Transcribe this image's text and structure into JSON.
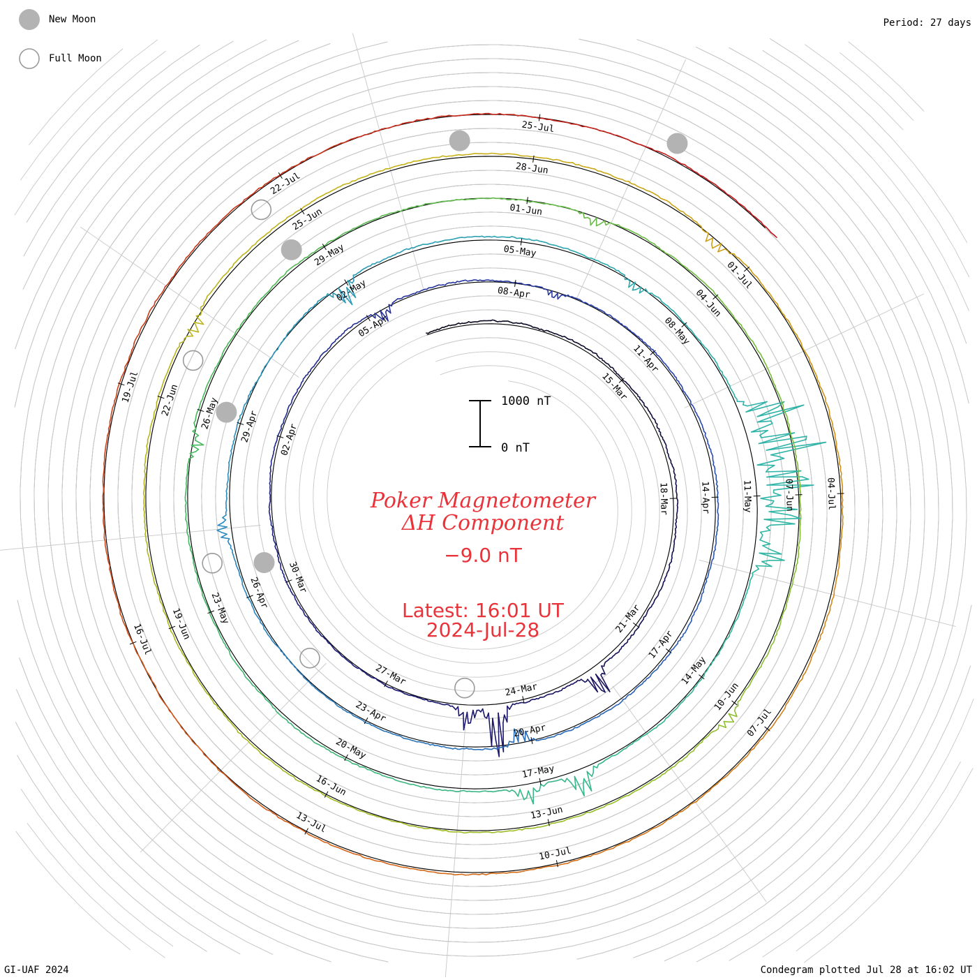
{
  "legend": {
    "new_moon": {
      "label": "New Moon",
      "color": "#b3b3b3"
    },
    "full_moon": {
      "label": "Full Moon",
      "color": "#9a9a9a"
    }
  },
  "header": {
    "period": "Period: 27 days"
  },
  "footer": {
    "left": "GI-UAF 2024",
    "right": "Condegram plotted Jul 28 at 16:02 UT"
  },
  "title": {
    "line1": "Poker Magnetometer",
    "line2": "ΔH Component",
    "value": "−9.0 nT",
    "latest_line1": "Latest: 16:01 UT",
    "latest_line2": "2024-Jul-28",
    "color": "#e8333a"
  },
  "scale_bar": {
    "top_label": "1000 nT",
    "bottom_label": "0 nT"
  },
  "chart_data": {
    "type": "line",
    "subtype": "condegram-spiral",
    "period_days": 27,
    "start_date": "2024-Mar-10",
    "end_date": "2024-Jul-28",
    "scale_nT": [
      0,
      1000
    ],
    "grid": true,
    "date_labels": [
      {
        "text": "15-Mar",
        "day": 5
      },
      {
        "text": "18-Mar",
        "day": 8
      },
      {
        "text": "21-Mar",
        "day": 11
      },
      {
        "text": "24-Mar",
        "day": 14
      },
      {
        "text": "27-Mar",
        "day": 17
      },
      {
        "text": "30-Mar",
        "day": 20
      },
      {
        "text": "02-Apr",
        "day": 23
      },
      {
        "text": "05-Apr",
        "day": 26
      },
      {
        "text": "08-Apr",
        "day": 29
      },
      {
        "text": "11-Apr",
        "day": 32
      },
      {
        "text": "14-Apr",
        "day": 35
      },
      {
        "text": "17-Apr",
        "day": 38
      },
      {
        "text": "20-Apr",
        "day": 41
      },
      {
        "text": "23-Apr",
        "day": 44
      },
      {
        "text": "26-Apr",
        "day": 47
      },
      {
        "text": "29-Apr",
        "day": 50
      },
      {
        "text": "02-May",
        "day": 53
      },
      {
        "text": "05-May",
        "day": 56
      },
      {
        "text": "08-May",
        "day": 59
      },
      {
        "text": "11-May",
        "day": 62
      },
      {
        "text": "14-May",
        "day": 65
      },
      {
        "text": "17-May",
        "day": 68
      },
      {
        "text": "20-May",
        "day": 71
      },
      {
        "text": "23-May",
        "day": 74
      },
      {
        "text": "26-May",
        "day": 77
      },
      {
        "text": "29-May",
        "day": 80
      },
      {
        "text": "01-Jun",
        "day": 83
      },
      {
        "text": "04-Jun",
        "day": 86
      },
      {
        "text": "07-Jun",
        "day": 89
      },
      {
        "text": "10-Jun",
        "day": 92
      },
      {
        "text": "13-Jun",
        "day": 95
      },
      {
        "text": "16-Jun",
        "day": 98
      },
      {
        "text": "19-Jun",
        "day": 101
      },
      {
        "text": "22-Jun",
        "day": 104
      },
      {
        "text": "25-Jun",
        "day": 107
      },
      {
        "text": "28-Jun",
        "day": 110
      },
      {
        "text": "01-Jul",
        "day": 113
      },
      {
        "text": "04-Jul",
        "day": 116
      },
      {
        "text": "07-Jul",
        "day": 119
      },
      {
        "text": "10-Jul",
        "day": 122
      },
      {
        "text": "13-Jul",
        "day": 125
      },
      {
        "text": "16-Jul",
        "day": 128
      },
      {
        "text": "19-Jul",
        "day": 131
      },
      {
        "text": "22-Jul",
        "day": 134
      },
      {
        "text": "25-Jul",
        "day": 137
      }
    ],
    "new_moons": [
      20.5,
      50.1,
      79.6,
      109.1,
      138.5
    ],
    "full_moons": [
      15.3,
      45.5,
      74.7,
      104.6,
      133.6
    ],
    "disturbances": [
      {
        "day": 12.4,
        "amplitude_nT": 700,
        "dir": 1
      },
      {
        "day": 14.6,
        "amplitude_nT": 1300,
        "dir": 1
      },
      {
        "day": 15.2,
        "amplitude_nT": 500,
        "dir": 1
      },
      {
        "day": 26.3,
        "amplitude_nT": 350,
        "dir": -1
      },
      {
        "day": 29.8,
        "amplitude_nT": 200,
        "dir": -1
      },
      {
        "day": 41.2,
        "amplitude_nT": 450,
        "dir": -1
      },
      {
        "day": 48.2,
        "amplitude_nT": 300,
        "dir": 1
      },
      {
        "day": 52.9,
        "amplitude_nT": 600,
        "dir": -1
      },
      {
        "day": 58.0,
        "amplitude_nT": 250,
        "dir": -1
      },
      {
        "day": 60.8,
        "amplitude_nT": 1400,
        "dir": 1
      },
      {
        "day": 61.3,
        "amplitude_nT": 1800,
        "dir": 1
      },
      {
        "day": 61.8,
        "amplitude_nT": 1500,
        "dir": 1
      },
      {
        "day": 62.3,
        "amplitude_nT": 1100,
        "dir": 1
      },
      {
        "day": 62.9,
        "amplitude_nT": 700,
        "dir": 1
      },
      {
        "day": 67.4,
        "amplitude_nT": 600,
        "dir": 1
      },
      {
        "day": 68.2,
        "amplitude_nT": 400,
        "dir": 1
      },
      {
        "day": 76.5,
        "amplitude_nT": 300,
        "dir": -1
      },
      {
        "day": 84.0,
        "amplitude_nT": 250,
        "dir": -1
      },
      {
        "day": 92.2,
        "amplitude_nT": 250,
        "dir": 1
      },
      {
        "day": 105.0,
        "amplitude_nT": 300,
        "dir": -1
      },
      {
        "day": 112.5,
        "amplitude_nT": 300,
        "dir": -1
      }
    ],
    "axis_line_colors": [
      "#000000",
      "#000000",
      "#000000",
      "#000000",
      "#000000"
    ],
    "color_ramp": [
      "#0b0b1a",
      "#1c1870",
      "#2b3fa8",
      "#2b86c0",
      "#2fb6a6",
      "#4ab85a",
      "#96bf2a",
      "#c8b21a",
      "#d6651a",
      "#c0141a"
    ]
  }
}
